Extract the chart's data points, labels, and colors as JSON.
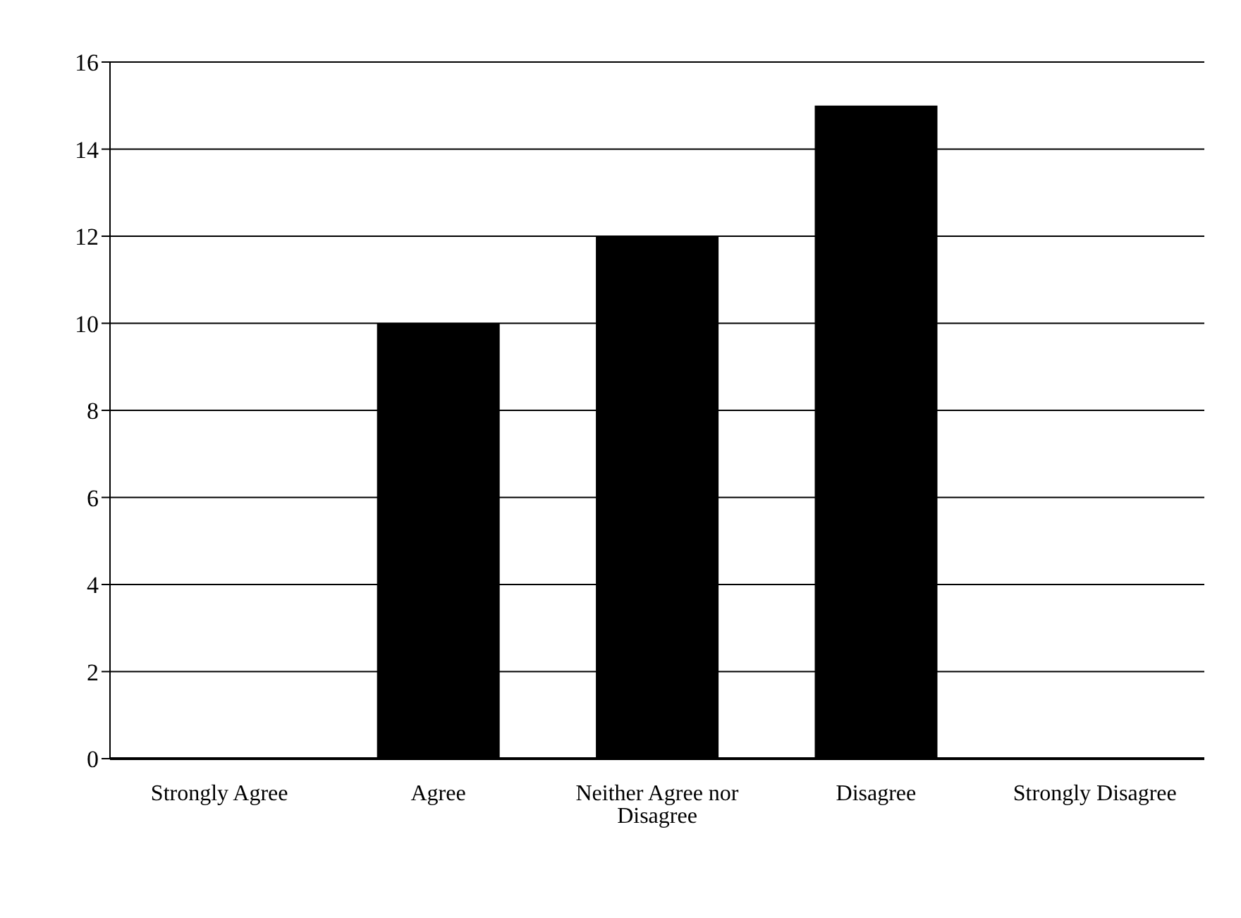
{
  "chart_data": {
    "type": "bar",
    "categories": [
      "Strongly Agree",
      "Agree",
      "Neither Agree nor Disagree",
      "Disagree",
      "Strongly Disagree"
    ],
    "values": [
      0,
      10,
      12,
      15,
      0
    ],
    "color": "#000000",
    "ylim": [
      0,
      16
    ],
    "yticks": [
      0,
      2,
      4,
      6,
      8,
      10,
      12,
      14,
      16
    ],
    "grid": "y",
    "legend": false
  }
}
